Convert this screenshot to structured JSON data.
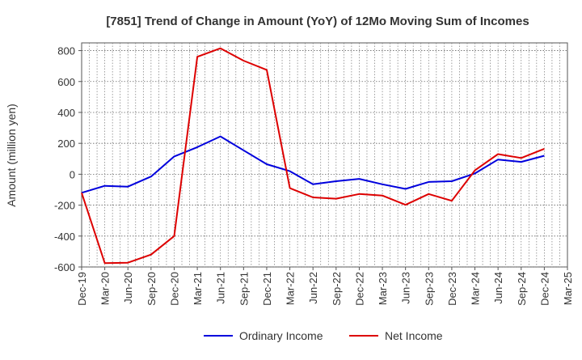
{
  "chart_data": {
    "type": "line",
    "title": "[7851]  Trend of Change in Amount (YoY) of 12Mo Moving Sum of Incomes",
    "xlabel": "",
    "ylabel": "Amount (million yen)",
    "categories": [
      "Dec-19",
      "Mar-20",
      "Jun-20",
      "Sep-20",
      "Dec-20",
      "Mar-21",
      "Jun-21",
      "Sep-21",
      "Dec-21",
      "Mar-22",
      "Jun-22",
      "Sep-22",
      "Dec-22",
      "Mar-23",
      "Jun-23",
      "Sep-23",
      "Dec-23",
      "Mar-24",
      "Jun-24",
      "Sep-24",
      "Dec-24",
      "Mar-25"
    ],
    "ylim": [
      -600,
      850
    ],
    "yticks": [
      -600,
      -400,
      -200,
      0,
      200,
      400,
      600,
      800
    ],
    "grid": true,
    "legend_position": "bottom",
    "series": [
      {
        "name": "Ordinary Income",
        "color": "#0000dd",
        "values": [
          -120,
          -75,
          -80,
          -15,
          115,
          175,
          245,
          155,
          65,
          20,
          -65,
          -45,
          -30,
          -65,
          -95,
          -50,
          -45,
          5,
          95,
          80,
          120,
          null
        ]
      },
      {
        "name": "Net Income",
        "color": "#dd0000",
        "values": [
          -120,
          -575,
          -572,
          -520,
          -400,
          760,
          815,
          735,
          675,
          -90,
          -150,
          -158,
          -128,
          -138,
          -198,
          -128,
          -172,
          25,
          130,
          105,
          165,
          null
        ]
      }
    ]
  }
}
